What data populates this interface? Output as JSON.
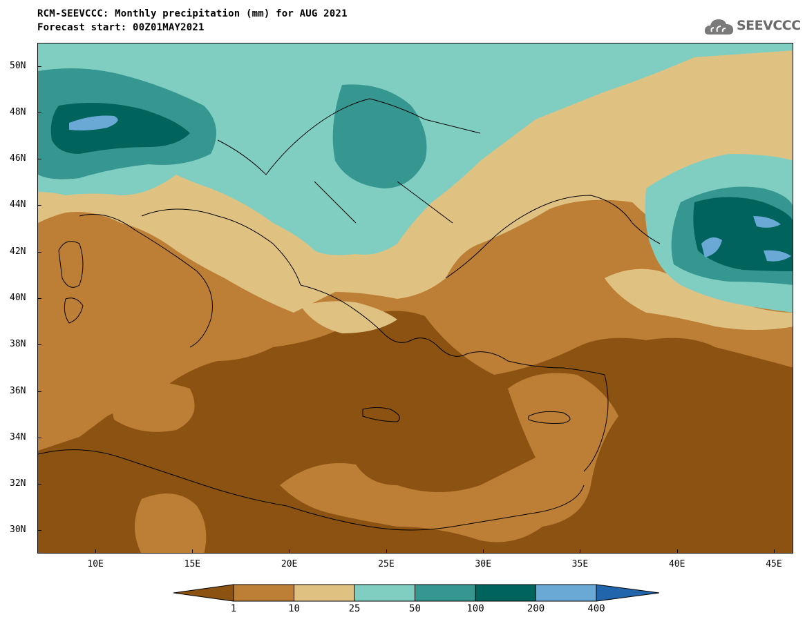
{
  "header": {
    "title_line1": "RCM-SEEVCCC: Monthly precipitation (mm) for AUG 2021",
    "title_line2": "Forecast start: 00Z01MAY2021"
  },
  "logo": {
    "text": "SEEVCCC",
    "icon": "cloud-logo-icon"
  },
  "map": {
    "lat_range": [
      29,
      51
    ],
    "lon_range": [
      7,
      46
    ],
    "lat_labels": [
      "50N",
      "48N",
      "46N",
      "44N",
      "42N",
      "40N",
      "38N",
      "36N",
      "34N",
      "32N",
      "30N"
    ],
    "lat_values": [
      50,
      48,
      46,
      44,
      42,
      40,
      38,
      36,
      34,
      32,
      30
    ],
    "lon_labels": [
      "10E",
      "15E",
      "20E",
      "25E",
      "30E",
      "35E",
      "40E",
      "45E"
    ],
    "lon_values": [
      10,
      15,
      20,
      25,
      30,
      35,
      40,
      45
    ]
  },
  "legend": {
    "thresholds": [
      "1",
      "10",
      "25",
      "50",
      "100",
      "200",
      "400"
    ],
    "colors": [
      "#8b5212",
      "#bd7f35",
      "#dfc282",
      "#80cec2",
      "#369690",
      "#00645c",
      "#6aa9d6",
      "#2166ac"
    ]
  }
}
